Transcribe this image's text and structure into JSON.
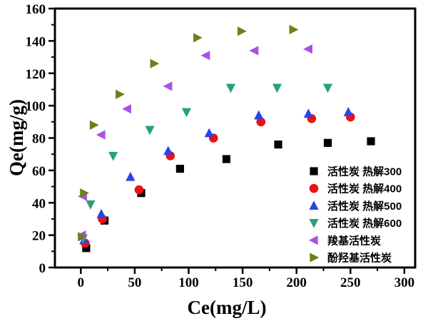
{
  "chart_data": {
    "type": "scatter",
    "title": "",
    "xlabel": "Ce(mg/L)",
    "ylabel": "Qe(mg/g)",
    "xlim": [
      -24,
      310
    ],
    "ylim": [
      0,
      160
    ],
    "x_major_ticks": [
      0,
      50,
      100,
      150,
      200,
      250,
      300
    ],
    "x_minor_ticks": [
      25,
      75,
      125,
      175,
      225,
      275
    ],
    "y_major_ticks": [
      0,
      20,
      40,
      60,
      80,
      100,
      120,
      140,
      160
    ],
    "y_minor_ticks": [
      10,
      30,
      50,
      70,
      90,
      110,
      130,
      150
    ],
    "grid": false,
    "legend_position": "inside-right-middle",
    "axis_color": "#000000",
    "series": [
      {
        "name": "活性炭 热解300",
        "marker": "square",
        "color": "#000000",
        "points": [
          [
            5,
            12
          ],
          [
            22,
            29
          ],
          [
            56,
            46
          ],
          [
            92,
            61
          ],
          [
            135,
            67
          ],
          [
            183,
            76
          ],
          [
            229,
            77
          ],
          [
            269,
            78
          ]
        ]
      },
      {
        "name": "活性炭 热解400",
        "marker": "circle",
        "color": "#ee1111",
        "points": [
          [
            4,
            15
          ],
          [
            20,
            30
          ],
          [
            54,
            48
          ],
          [
            83,
            69
          ],
          [
            123,
            80
          ],
          [
            167,
            90
          ],
          [
            214,
            92
          ],
          [
            250,
            93
          ]
        ]
      },
      {
        "name": "活性炭 热解500",
        "marker": "triangle-up",
        "color": "#2843e8",
        "points": [
          [
            3,
            17
          ],
          [
            19,
            33
          ],
          [
            46,
            56
          ],
          [
            81,
            72
          ],
          [
            119,
            83
          ],
          [
            165,
            94
          ],
          [
            211,
            95
          ],
          [
            248,
            96
          ]
        ]
      },
      {
        "name": "活性炭 热解600",
        "marker": "triangle-down",
        "color": "#2ba07e",
        "points": [
          [
            2,
            18
          ],
          [
            9,
            39
          ],
          [
            30,
            69
          ],
          [
            64,
            85
          ],
          [
            98,
            96
          ],
          [
            139,
            111
          ],
          [
            182,
            111
          ],
          [
            229,
            111
          ]
        ]
      },
      {
        "name": "羧基活性炭",
        "marker": "triangle-left",
        "color": "#a850e8",
        "points": [
          [
            1,
            20
          ],
          [
            2,
            44
          ],
          [
            19,
            82
          ],
          [
            43,
            98
          ],
          [
            81,
            112
          ],
          [
            116,
            131
          ],
          [
            161,
            134
          ],
          [
            211,
            135
          ]
        ]
      },
      {
        "name": "酚羟基活性炭",
        "marker": "triangle-right",
        "color": "#6d801d",
        "points": [
          [
            1,
            19
          ],
          [
            3,
            46
          ],
          [
            12,
            88
          ],
          [
            36,
            107
          ],
          [
            68,
            126
          ],
          [
            108,
            142
          ],
          [
            149,
            146
          ],
          [
            197,
            147
          ]
        ]
      }
    ]
  }
}
